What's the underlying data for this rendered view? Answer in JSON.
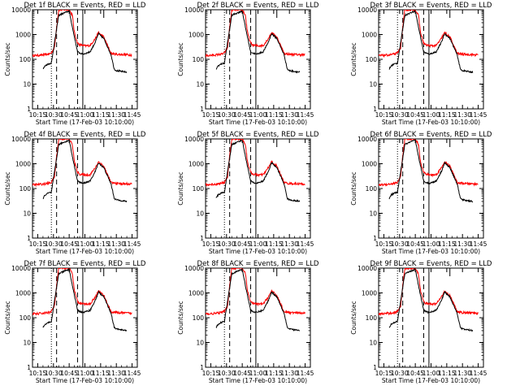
{
  "colors": {
    "events": "#000000",
    "lld": "#ff0000",
    "background": "#ffffff"
  },
  "chart_data": [
    {
      "type": "line",
      "title": "Det 1f BLACK = Events, RED = LLD"
    },
    {
      "type": "line",
      "title": "Det 2f BLACK = Events, RED = LLD"
    },
    {
      "type": "line",
      "title": "Det 3f BLACK = Events, RED = LLD"
    },
    {
      "type": "line",
      "title": "Det 4f BLACK = Events, RED = LLD"
    },
    {
      "type": "line",
      "title": "Det 5f BLACK = Events, RED = LLD"
    },
    {
      "type": "line",
      "title": "Det 6f BLACK = Events, RED = LLD"
    },
    {
      "type": "line",
      "title": "Det 7f BLACK = Events, RED = LLD"
    },
    {
      "type": "line",
      "title": "Det 8f BLACK = Events, RED = LLD"
    },
    {
      "type": "line",
      "title": "Det 9f BLACK = Events, RED = LLD"
    }
  ],
  "shared": {
    "xlabel": "Start Time (17-Feb-03 10:10:00)",
    "ylabel": "Counts/sec",
    "x_ticks": [
      "10:15",
      "10:30",
      "10:45",
      "11:00",
      "11:15",
      "11:30",
      "11:45"
    ],
    "y_ticks": [
      "1",
      "10",
      "100",
      "1000",
      "10000"
    ],
    "ylim": [
      1,
      10000
    ],
    "yscale": "log",
    "series_names": [
      "Events",
      "LLD"
    ],
    "markers": {
      "dotted": "10:28",
      "dashed": [
        "10:33",
        "10:53"
      ],
      "solid": "10:58",
      "bracket": "11:18"
    },
    "lld_series": {
      "x": [
        "10:10",
        "10:20",
        "10:26",
        "10:28",
        "10:31",
        "10:33",
        "10:35",
        "10:40",
        "10:45",
        "10:48",
        "10:50",
        "10:53",
        "10:55",
        "11:00",
        "11:05",
        "11:10",
        "11:13",
        "11:15",
        "11:18",
        "11:25",
        "11:30",
        "11:45"
      ],
      "y": [
        140,
        150,
        165,
        180,
        300,
        2000,
        10000,
        10000,
        10000,
        6000,
        1200,
        450,
        380,
        350,
        360,
        700,
        1200,
        1000,
        800,
        170,
        160,
        150
      ]
    },
    "events_series": {
      "x": [
        "10:20",
        "10:22",
        "10:25",
        "10:28",
        "10:35",
        "10:45",
        "10:48",
        "10:53",
        "10:55",
        "10:58",
        "11:05",
        "11:10",
        "11:13",
        "11:15",
        "11:18",
        "11:25",
        "11:28",
        "11:30",
        "11:40"
      ],
      "y": [
        40,
        55,
        65,
        70,
        6000,
        9000,
        2000,
        200,
        180,
        160,
        200,
        500,
        1100,
        900,
        700,
        150,
        40,
        35,
        30
      ]
    }
  }
}
